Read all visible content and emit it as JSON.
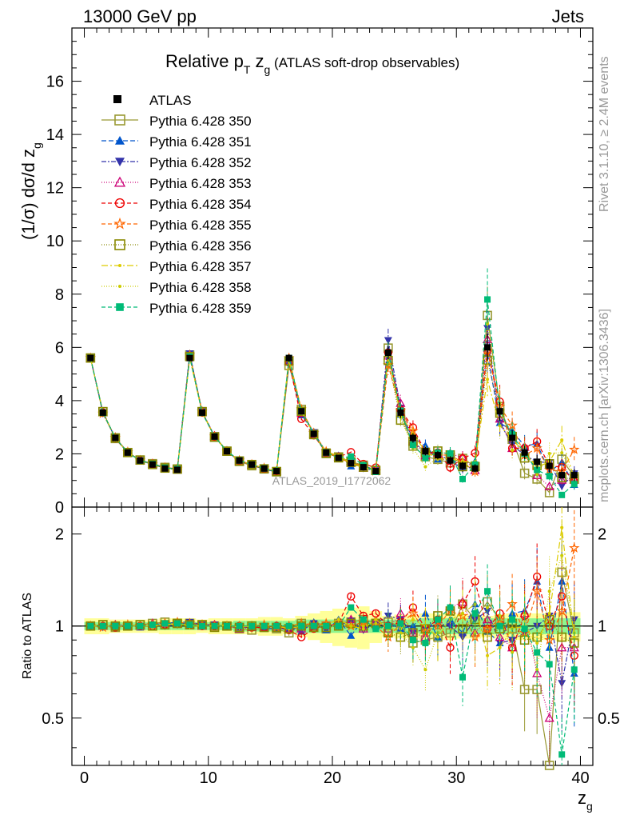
{
  "header": {
    "left_label": "13000 GeV pp",
    "right_label": "Jets",
    "plot_title_main": "Relative p",
    "plot_title_sub_t": "T",
    "plot_title_z": " z",
    "plot_title_sub_g": "g",
    "plot_title_rest": " (ATLAS soft-drop observables)",
    "watermark": "ATLAS_2019_I1772062",
    "side_rivet": "Rivet 3.1.10, ≥ 2.4M events",
    "side_mcplots": "mcplots.cern.ch [arXiv:1306.3436]"
  },
  "colors": {
    "data": "#000000",
    "band_inner": "#8ef58e",
    "band_outer": "#ffff99",
    "s350": "#999933",
    "s351": "#0055cc",
    "s352": "#3333aa",
    "s353": "#cc0077",
    "s354": "#ee0000",
    "s355": "#ff6600",
    "s356": "#888800",
    "s357": "#ddcc00",
    "s358": "#cccc00",
    "s359": "#00bb77"
  },
  "chart_data": {
    "type": "scatter",
    "title": "Relative pT zg (ATLAS soft-drop observables)",
    "xlabel": "z",
    "xlabel_sub": "g",
    "ylabel_main": "(1/σ) dσ/d z",
    "ylabel_sub": "g",
    "ratio_ylabel": "Ratio to ATLAS",
    "xlim": [
      -1,
      41
    ],
    "ylim": [
      0,
      18
    ],
    "ratio_ylim": [
      0.35,
      2.45
    ],
    "ratio_scale": "log",
    "x_ticks": [
      "0",
      "10",
      "20",
      "30",
      "40"
    ],
    "y_ticks": [
      "0",
      "2",
      "4",
      "6",
      "8",
      "10",
      "12",
      "14",
      "16"
    ],
    "ratio_ticks": [
      "0.5",
      "1",
      "2"
    ],
    "legend_position": "top-left",
    "x": [
      0.5,
      1.5,
      2.5,
      3.5,
      4.5,
      5.5,
      6.5,
      7.5,
      8.5,
      9.5,
      10.5,
      11.5,
      12.5,
      13.5,
      14.5,
      15.5,
      16.5,
      17.5,
      18.5,
      19.5,
      20.5,
      21.5,
      22.5,
      23.5,
      24.5,
      25.5,
      26.5,
      27.5,
      28.5,
      29.5,
      30.5,
      31.5,
      32.5,
      33.5,
      34.5,
      35.5,
      36.5,
      37.5,
      38.5,
      39.5
    ],
    "data": {
      "name": "ATLAS",
      "y": [
        5.6,
        3.55,
        2.6,
        2.05,
        1.75,
        1.6,
        1.45,
        1.4,
        5.6,
        3.55,
        2.65,
        2.1,
        1.75,
        1.6,
        1.45,
        1.35,
        5.6,
        3.6,
        2.75,
        2.05,
        1.85,
        1.65,
        1.5,
        1.35,
        5.8,
        3.55,
        2.6,
        2.1,
        1.95,
        1.75,
        1.55,
        1.45,
        6.0,
        3.6,
        2.6,
        2.05,
        1.7,
        1.55,
        1.2,
        1.2
      ],
      "err": [
        0.12,
        0.08,
        0.06,
        0.05,
        0.04,
        0.04,
        0.04,
        0.04,
        0.12,
        0.08,
        0.06,
        0.05,
        0.04,
        0.04,
        0.04,
        0.04,
        0.14,
        0.1,
        0.08,
        0.06,
        0.06,
        0.06,
        0.06,
        0.06,
        0.25,
        0.2,
        0.18,
        0.16,
        0.16,
        0.16,
        0.16,
        0.16,
        0.5,
        0.35,
        0.3,
        0.25,
        0.25,
        0.25,
        0.22,
        0.22
      ]
    },
    "band": {
      "inner": [
        0.03,
        0.03,
        0.03,
        0.03,
        0.03,
        0.03,
        0.03,
        0.03,
        0.03,
        0.03,
        0.03,
        0.03,
        0.04,
        0.04,
        0.04,
        0.04,
        0.04,
        0.05,
        0.05,
        0.05,
        0.05,
        0.05,
        0.05,
        0.05,
        0.05,
        0.05,
        0.05,
        0.06,
        0.06,
        0.06,
        0.06,
        0.06,
        0.06,
        0.06,
        0.06,
        0.06,
        0.06,
        0.06,
        0.06,
        0.06
      ],
      "outer": [
        0.06,
        0.06,
        0.05,
        0.05,
        0.05,
        0.05,
        0.06,
        0.06,
        0.06,
        0.05,
        0.06,
        0.06,
        0.06,
        0.06,
        0.07,
        0.07,
        0.06,
        0.08,
        0.1,
        0.12,
        0.14,
        0.15,
        0.16,
        0.12,
        0.08,
        0.09,
        0.09,
        0.1,
        0.1,
        0.1,
        0.09,
        0.09,
        0.08,
        0.09,
        0.1,
        0.1,
        0.1,
        0.1,
        0.11,
        0.11
      ]
    },
    "series": [
      {
        "name": "Pythia 6.428 350",
        "color_key": "s350",
        "marker": "square-open",
        "dash": "",
        "ratio": [
          1.0,
          1.01,
          0.99,
          1.0,
          1.01,
          1.02,
          1.03,
          1.02,
          1.02,
          1.01,
          1.0,
          1.0,
          0.98,
          0.97,
          0.99,
          0.98,
          0.95,
          1.02,
          1.0,
          0.98,
          1.02,
          1.03,
          1.05,
          1.02,
          1.03,
          1.0,
          0.88,
          0.9,
          0.92,
          0.95,
          1.18,
          1.05,
          1.2,
          1.05,
          0.98,
          0.62,
          0.62,
          0.35,
          1.5,
          0.95
        ]
      },
      {
        "name": "Pythia 6.428 351",
        "color_key": "s351",
        "marker": "triangle-up",
        "dash": "6,3",
        "ratio": [
          1.0,
          1.0,
          1.0,
          1.01,
          0.99,
          1.01,
          1.02,
          1.03,
          1.03,
          1.0,
          1.0,
          1.01,
          0.99,
          1.0,
          0.98,
          0.98,
          0.98,
          0.96,
          1.03,
          0.97,
          1.05,
          0.93,
          1.05,
          1.0,
          1.02,
          0.98,
          1.0,
          1.1,
          0.92,
          1.05,
          0.95,
          1.18,
          0.96,
          0.88,
          1.1,
          1.12,
          1.4,
          0.85,
          1.4,
          0.7
        ]
      },
      {
        "name": "Pythia 6.428 352",
        "color_key": "s352",
        "marker": "triangle-down",
        "dash": "6,2,2,2",
        "ratio": [
          1.0,
          0.99,
          1.0,
          1.0,
          1.0,
          1.01,
          1.0,
          1.01,
          1.03,
          1.01,
          1.01,
          1.0,
          0.99,
          0.99,
          1.0,
          0.99,
          0.97,
          1.0,
          1.02,
          1.01,
          1.0,
          1.04,
          0.97,
          1.02,
          1.08,
          1.05,
          0.95,
          0.98,
          1.02,
          1.0,
          0.92,
          1.05,
          1.12,
          0.88,
          0.9,
          0.95,
          1.0,
          1.08,
          0.65,
          1.05
        ]
      },
      {
        "name": "Pythia 6.428 353",
        "color_key": "s353",
        "marker": "triangle-open",
        "dash": "1,2",
        "ratio": [
          1.0,
          1.0,
          1.01,
          1.0,
          1.0,
          1.02,
          1.02,
          1.02,
          1.01,
          1.0,
          1.01,
          1.0,
          0.98,
          0.99,
          0.99,
          1.0,
          0.98,
          0.98,
          1.0,
          1.0,
          1.02,
          1.05,
          0.98,
          1.04,
          0.98,
          1.1,
          0.95,
          0.92,
          1.05,
          1.15,
          1.2,
          0.95,
          1.05,
          0.92,
          0.85,
          1.1,
          0.7,
          0.5,
          0.85,
          0.85
        ]
      },
      {
        "name": "Pythia 6.428 354",
        "color_key": "s354",
        "marker": "circle-open",
        "dash": "5,3",
        "ratio": [
          1.0,
          1.0,
          0.99,
          1.0,
          1.0,
          1.0,
          1.01,
          1.02,
          1.01,
          1.0,
          1.0,
          1.0,
          1.0,
          0.99,
          0.99,
          1.0,
          0.97,
          0.92,
          0.98,
          1.0,
          1.02,
          1.25,
          1.08,
          1.1,
          1.0,
          1.03,
          1.15,
          0.98,
          1.05,
          0.85,
          1.18,
          1.4,
          0.98,
          1.1,
          0.85,
          1.08,
          1.45,
          1.0,
          1.25,
          0.8
        ]
      },
      {
        "name": "Pythia 6.428 355",
        "color_key": "s355",
        "marker": "star",
        "dash": "5,3",
        "ratio": [
          1.0,
          0.99,
          1.0,
          1.01,
          1.0,
          1.01,
          1.02,
          1.03,
          1.02,
          1.01,
          1.0,
          1.0,
          1.0,
          1.0,
          1.01,
          0.99,
          1.0,
          1.02,
          1.01,
          1.02,
          1.0,
          1.0,
          1.03,
          1.0,
          0.92,
          1.02,
          1.1,
          0.96,
          1.0,
          1.12,
          1.08,
          0.92,
          0.98,
          1.05,
          1.18,
          0.95,
          1.3,
          0.9,
          1.12,
          1.8
        ]
      },
      {
        "name": "Pythia 6.428 356",
        "color_key": "s356",
        "marker": "square-open",
        "dash": "1,2",
        "ratio": [
          1.0,
          1.01,
          1.0,
          1.0,
          1.01,
          1.0,
          1.01,
          1.02,
          1.01,
          1.01,
          0.99,
          1.0,
          0.99,
          1.0,
          0.99,
          0.99,
          0.98,
          1.0,
          0.99,
          0.99,
          1.0,
          1.02,
          1.0,
          1.02,
          0.95,
          0.92,
          0.95,
          0.98,
          1.08,
          1.12,
          0.98,
          1.05,
          0.92,
          0.98,
          1.02,
          0.9,
          0.92,
          1.05,
          0.92,
          0.88
        ]
      },
      {
        "name": "Pythia 6.428 357",
        "color_key": "s357",
        "marker": "dot",
        "dash": "8,3,2,3",
        "ratio": [
          1.0,
          1.0,
          1.0,
          1.0,
          1.0,
          1.0,
          1.01,
          1.02,
          1.0,
          1.0,
          1.0,
          1.01,
          0.99,
          1.0,
          1.0,
          1.0,
          0.98,
          1.0,
          1.0,
          1.01,
          1.05,
          1.0,
          0.98,
          1.05,
          0.98,
          0.98,
          1.05,
          1.0,
          0.92,
          1.05,
          1.1,
          1.18,
          0.8,
          0.85,
          0.98,
          1.0,
          0.88,
          1.1,
          2.1,
          0.92
        ]
      },
      {
        "name": "Pythia 6.428 358",
        "color_key": "s358",
        "marker": "dot",
        "dash": "1,2",
        "ratio": [
          1.0,
          1.0,
          1.0,
          1.0,
          1.0,
          1.01,
          1.01,
          1.01,
          1.0,
          1.0,
          1.0,
          1.0,
          1.0,
          1.0,
          1.0,
          1.0,
          1.0,
          1.01,
          1.0,
          1.0,
          1.0,
          1.0,
          1.0,
          1.02,
          1.0,
          0.95,
          0.85,
          0.72,
          0.95,
          1.05,
          1.1,
          0.95,
          1.15,
          1.08,
          0.82,
          1.1,
          0.72,
          1.3,
          1.7,
          0.95
        ]
      },
      {
        "name": "Pythia 6.428 359",
        "color_key": "s359",
        "marker": "square",
        "dash": "5,3",
        "ratio": [
          1.0,
          1.0,
          1.0,
          1.0,
          1.0,
          1.01,
          1.02,
          1.02,
          1.01,
          1.0,
          1.0,
          1.0,
          1.0,
          1.0,
          1.0,
          1.0,
          1.0,
          1.0,
          1.0,
          1.0,
          1.0,
          1.15,
          1.05,
          0.98,
          1.0,
          1.02,
          0.9,
          0.88,
          1.05,
          1.15,
          0.68,
          1.1,
          1.3,
          1.0,
          1.05,
          0.98,
          0.82,
          0.75,
          0.38,
          0.72
        ]
      }
    ]
  }
}
